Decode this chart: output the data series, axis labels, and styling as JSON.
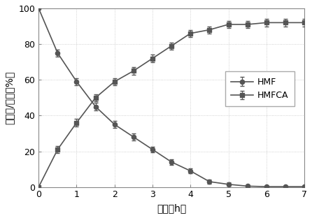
{
  "hmf_x": [
    0,
    0.5,
    1.0,
    1.5,
    2.0,
    2.5,
    3.0,
    3.5,
    4.0,
    4.5,
    5.0,
    5.5,
    6.0,
    6.5,
    7.0
  ],
  "hmf_y": [
    100,
    75,
    59,
    45,
    35,
    28,
    21,
    14,
    9,
    3,
    1.5,
    0.5,
    0.2,
    0.2,
    0.2
  ],
  "hmf_yerr": [
    0,
    2,
    2,
    2,
    2,
    2,
    1.5,
    1.5,
    1.5,
    1,
    1,
    0.5,
    0.5,
    0.5,
    0.5
  ],
  "hmfca_x": [
    0,
    0.5,
    1.0,
    1.5,
    2.0,
    2.5,
    3.0,
    3.5,
    4.0,
    4.5,
    5.0,
    5.5,
    6.0,
    6.5,
    7.0
  ],
  "hmfca_y": [
    0,
    21,
    36,
    50,
    59,
    65,
    72,
    79,
    86,
    88,
    91,
    91,
    92,
    92,
    92
  ],
  "hmfca_yerr": [
    0,
    2,
    2,
    2,
    2,
    2,
    2,
    2,
    2,
    2,
    2,
    2,
    2,
    2,
    2
  ],
  "color": "#555555",
  "xlabel": "时间（h）",
  "ylabel": "转化率/产率（%）",
  "xlim": [
    0,
    7
  ],
  "ylim": [
    0,
    100
  ],
  "xticks": [
    0,
    1,
    2,
    3,
    4,
    5,
    6,
    7
  ],
  "yticks": [
    0,
    20,
    40,
    60,
    80,
    100
  ],
  "legend_hmf": "HMF",
  "legend_hmfca": "HMFCA",
  "background": "#f0f0f0"
}
